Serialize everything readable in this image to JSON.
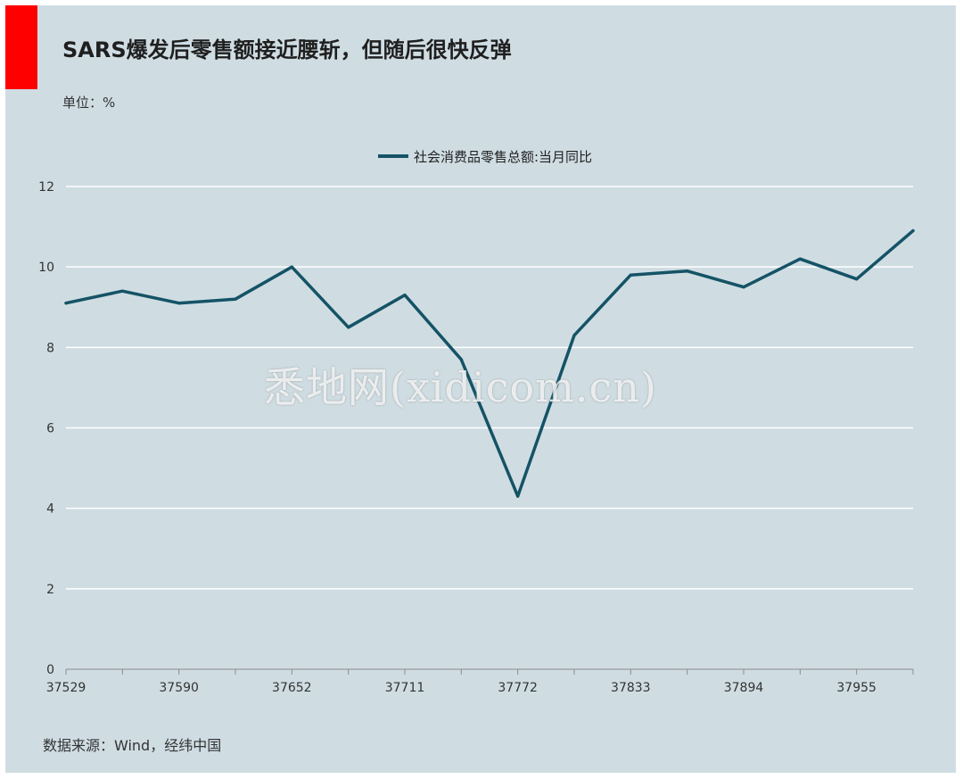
{
  "header": {
    "title": "SARS爆发后零售额接近腰斩，但随后很快反弹",
    "unit": "单位：%"
  },
  "colors": {
    "accent_block": "#ff0000",
    "background": "#cfdde3",
    "series_line": "#155366",
    "grid": "#ffffff"
  },
  "footer": {
    "source": "数据来源：Wind，经纬中国"
  },
  "watermark": {
    "text": "悉地网(xidicom.cn)"
  },
  "chart_data": {
    "type": "line",
    "title": "SARS爆发后零售额接近腰斩，但随后很快反弹",
    "xlabel": "",
    "ylabel": "单位：%",
    "ylim": [
      0,
      12
    ],
    "yticks": [
      "0",
      "2",
      "4",
      "6",
      "8",
      "10",
      "12"
    ],
    "xtick_labels": [
      "37529",
      "37590",
      "37652",
      "37711",
      "37772",
      "37833",
      "37894",
      "37955"
    ],
    "xtick_positions": [
      0,
      2,
      4,
      6,
      8,
      10,
      12,
      14
    ],
    "grid": true,
    "legend_position": "top-center",
    "series": [
      {
        "name": "社会消费品零售总额:当月同比",
        "color": "#155366",
        "values": [
          9.1,
          9.4,
          9.1,
          9.2,
          10.0,
          8.5,
          9.3,
          7.7,
          4.3,
          8.3,
          9.8,
          9.9,
          9.5,
          10.2,
          9.7,
          10.9
        ]
      }
    ]
  }
}
